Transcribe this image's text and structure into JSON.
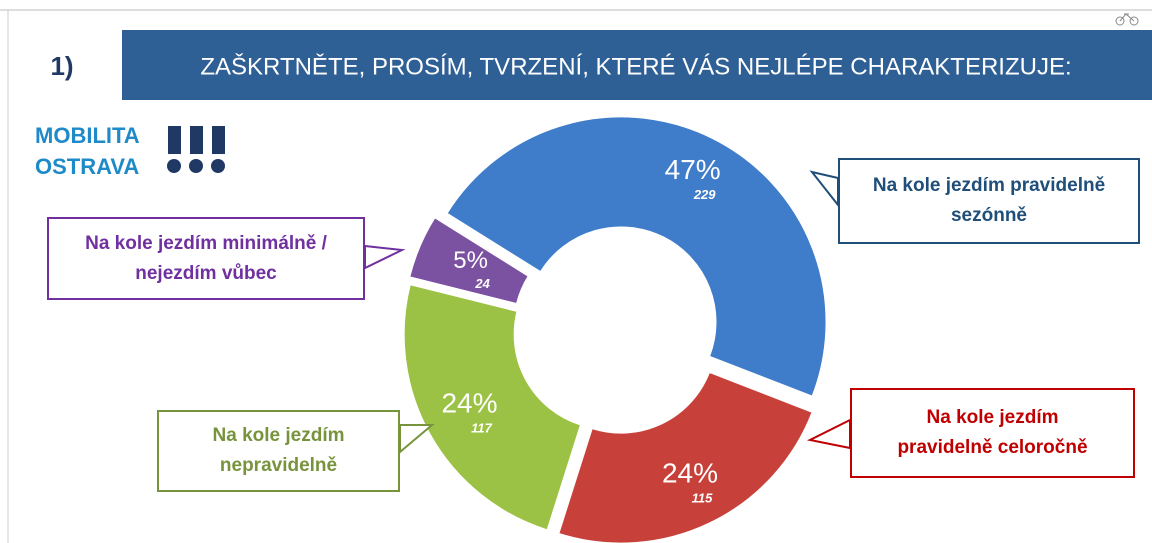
{
  "chart_data": {
    "type": "pie",
    "number": "1)",
    "title": "ZAŠKRTNĚTE, PROSÍM, TVRZENÍ, KTERÉ VÁS NEJLÉPE CHARAKTERIZUJE:",
    "logo": [
      "MOBILITA",
      "OSTRAVA"
    ],
    "categories": [
      "Na kole jezdím pravidelně sezónně",
      "Na kole jezdím pravidelně celoročně",
      "Na kole jezdím nepravidelně",
      "Na kole jezdím minimálně / nejezdím vůbec"
    ],
    "values": [
      47,
      24,
      24,
      5
    ],
    "value_labels": [
      "47%",
      "24%",
      "24%",
      "5%"
    ],
    "counts": [
      229,
      115,
      117,
      24
    ],
    "colors": [
      "#3f7cc9",
      "#c8403a",
      "#9cc245",
      "#7b51a1"
    ],
    "text_colors": [
      "#1f4e79",
      "#c00000",
      "#77933c",
      "#7030a0"
    ]
  }
}
